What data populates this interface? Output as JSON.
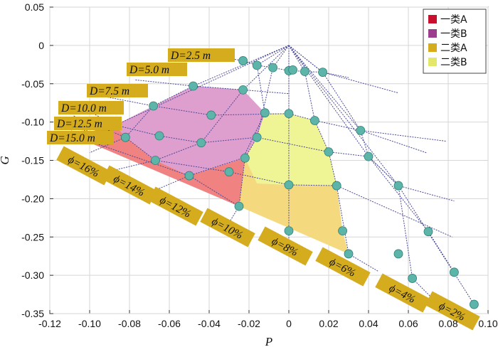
{
  "chart_data": {
    "type": "scatter",
    "title": "",
    "xlabel": "P",
    "ylabel": "G",
    "xlim": [
      -0.12,
      0.1
    ],
    "ylim": [
      -0.35,
      0.05
    ],
    "x_ticks": [
      "-0.12",
      "-0.10",
      "-0.08",
      "-0.06",
      "-0.04",
      "-0.02",
      "0",
      "0.02",
      "0.04",
      "0.06",
      "0.08",
      "0.10"
    ],
    "y_ticks": [
      "0.05",
      "0",
      "-0.05",
      "-0.10",
      "-0.15",
      "-0.20",
      "-0.25",
      "-0.30",
      "-0.35"
    ],
    "grid": true,
    "legend_position": "top-right",
    "legend": [
      {
        "label": "一类A",
        "color": "#c8102e"
      },
      {
        "label": "一类B",
        "color": "#9c3d8e"
      },
      {
        "label": "二类A",
        "color": "#d4ac1e"
      },
      {
        "label": "二类B",
        "color": "#e3e86a"
      }
    ],
    "regions": [
      {
        "class": "一类B",
        "color": "#de9fcf",
        "points": [
          [
            -0.048,
            -0.053
          ],
          [
            -0.023,
            -0.058
          ],
          [
            -0.012,
            -0.088
          ],
          [
            -0.016,
            -0.12
          ],
          [
            -0.022,
            -0.147
          ],
          [
            -0.05,
            -0.17
          ],
          [
            -0.067,
            -0.15
          ],
          [
            -0.082,
            -0.12
          ],
          [
            -0.087,
            -0.104
          ],
          [
            -0.068,
            -0.079
          ]
        ]
      },
      {
        "class": "一类A",
        "color": "#f08282",
        "points": [
          [
            -0.087,
            -0.104
          ],
          [
            -0.082,
            -0.12
          ],
          [
            -0.067,
            -0.15
          ],
          [
            -0.05,
            -0.17
          ],
          [
            -0.022,
            -0.147
          ],
          [
            -0.025,
            -0.21
          ],
          [
            -0.108,
            -0.118
          ]
        ]
      },
      {
        "class": "二类B",
        "color": "#eff494",
        "points": [
          [
            -0.012,
            -0.088
          ],
          [
            0.0,
            -0.089
          ],
          [
            0.013,
            -0.098
          ],
          [
            0.02,
            -0.139
          ],
          [
            0.024,
            -0.183
          ],
          [
            0.0,
            -0.182
          ],
          [
            -0.016,
            -0.18
          ],
          [
            -0.022,
            -0.147
          ],
          [
            -0.016,
            -0.12
          ]
        ]
      },
      {
        "class": "二类A",
        "color": "#f4d97e",
        "points": [
          [
            -0.022,
            -0.147
          ],
          [
            -0.016,
            -0.18
          ],
          [
            0.0,
            -0.182
          ],
          [
            0.024,
            -0.183
          ],
          [
            0.027,
            -0.242
          ],
          [
            0.03,
            -0.272
          ],
          [
            -0.025,
            -0.21
          ]
        ]
      }
    ],
    "origin": [
      0.0,
      0.0
    ],
    "d_lines": [
      {
        "label": "D=2.5 m",
        "points": [
          [
            -0.058,
            -0.005
          ],
          [
            -0.023,
            -0.02
          ],
          [
            -0.016,
            -0.026
          ],
          [
            -0.008,
            -0.029
          ],
          [
            -0.002,
            -0.032
          ],
          [
            0.002,
            -0.033
          ],
          [
            0.008,
            -0.034
          ],
          [
            0.017,
            -0.035
          ],
          [
            0.03,
            -0.042
          ]
        ]
      },
      {
        "label": "D=5.0 m",
        "points": [
          [
            -0.077,
            -0.045
          ],
          [
            -0.048,
            -0.053
          ],
          [
            -0.023,
            -0.058
          ],
          [
            0.0,
            -0.063
          ]
        ]
      },
      {
        "label": "D=7.5 m",
        "points": [
          [
            -0.096,
            -0.065
          ],
          [
            -0.068,
            -0.079
          ],
          [
            -0.039,
            -0.091
          ],
          [
            0.0,
            -0.089
          ],
          [
            0.013,
            -0.098
          ],
          [
            0.036,
            -0.111
          ],
          [
            0.079,
            -0.125
          ]
        ]
      },
      {
        "label": "D=10.0 m",
        "points": [
          [
            -0.105,
            -0.08
          ],
          [
            -0.087,
            -0.104
          ],
          [
            -0.065,
            -0.118
          ],
          [
            -0.044,
            -0.127
          ],
          [
            -0.016,
            -0.12
          ],
          [
            0.02,
            -0.139
          ],
          [
            0.04,
            -0.145
          ],
          [
            0.055,
            -0.183
          ],
          [
            0.083,
            -0.203
          ]
        ]
      },
      {
        "label": "D=12.5 m",
        "points": [
          [
            -0.108,
            -0.092
          ],
          [
            -0.082,
            -0.12
          ],
          [
            -0.067,
            -0.15
          ],
          [
            -0.03,
            -0.165
          ],
          [
            0.0,
            -0.182
          ],
          [
            0.024,
            -0.183
          ],
          [
            0.082,
            -0.25
          ]
        ]
      },
      {
        "label": "D=15.0 m",
        "points": [
          [
            -0.11,
            -0.105
          ],
          [
            -0.108,
            -0.118
          ],
          [
            -0.05,
            -0.17
          ],
          [
            -0.025,
            -0.21
          ]
        ]
      }
    ],
    "phi_lines": [
      {
        "label": "ϕ=16%",
        "points": [
          [
            0.0,
            0.0
          ],
          [
            -0.087,
            -0.104
          ],
          [
            -0.115,
            -0.117
          ]
        ]
      },
      {
        "label": "ϕ=14%",
        "points": [
          [
            0.0,
            0.0
          ],
          [
            -0.048,
            -0.053
          ],
          [
            -0.068,
            -0.079
          ],
          [
            -0.082,
            -0.12
          ],
          [
            -0.1,
            -0.14
          ]
        ]
      },
      {
        "label": "ϕ=12%",
        "points": [
          [
            0.0,
            0.0
          ],
          [
            -0.023,
            -0.058
          ],
          [
            -0.044,
            -0.127
          ],
          [
            -0.067,
            -0.15
          ],
          [
            -0.088,
            -0.163
          ]
        ]
      },
      {
        "label": "ϕ=10%",
        "points": [
          [
            0.0,
            0.0
          ],
          [
            -0.016,
            -0.026
          ],
          [
            -0.012,
            -0.088
          ],
          [
            -0.023,
            -0.147
          ],
          [
            -0.05,
            -0.17
          ],
          [
            -0.068,
            -0.19
          ]
        ]
      },
      {
        "label": "ϕ=8%",
        "points": [
          [
            0.0,
            0.0
          ],
          [
            -0.008,
            -0.029
          ],
          [
            -0.016,
            -0.12
          ],
          [
            -0.022,
            -0.147
          ],
          [
            -0.025,
            -0.21
          ],
          [
            -0.032,
            -0.24
          ]
        ]
      },
      {
        "label": "ϕ=6%",
        "points": [
          [
            0.0,
            0.0
          ],
          [
            0.0,
            -0.033
          ],
          [
            0.0,
            -0.089
          ],
          [
            0.0,
            -0.182
          ],
          [
            0.0,
            -0.242
          ],
          [
            0.0,
            -0.262
          ]
        ]
      },
      {
        "label": "ϕ=4%",
        "points": [
          [
            0.0,
            0.0
          ],
          [
            0.008,
            -0.034
          ],
          [
            0.013,
            -0.098
          ],
          [
            0.02,
            -0.139
          ],
          [
            0.024,
            -0.183
          ],
          [
            0.03,
            -0.272
          ],
          [
            0.045,
            -0.295
          ]
        ]
      },
      {
        "label": "ϕ=2%",
        "points": [
          [
            0.0,
            0.0
          ],
          [
            0.017,
            -0.035
          ],
          [
            0.036,
            -0.111
          ],
          [
            0.04,
            -0.145
          ],
          [
            0.055,
            -0.183
          ],
          [
            0.062,
            -0.304
          ],
          [
            0.072,
            -0.33
          ]
        ]
      }
    ],
    "extra_lines": [
      [
        [
          0.0,
          0.0
        ],
        [
          0.055,
          -0.183
        ],
        [
          0.093,
          -0.338
        ]
      ],
      [
        [
          0.0,
          0.0
        ],
        [
          0.04,
          -0.145
        ],
        [
          0.07,
          -0.243
        ],
        [
          0.083,
          -0.296
        ]
      ],
      [
        [
          0.0,
          0.0
        ],
        [
          0.036,
          -0.111
        ],
        [
          0.069,
          -0.14
        ]
      ],
      [
        [
          0.0,
          0.0
        ],
        [
          0.017,
          -0.035
        ],
        [
          0.055,
          -0.062
        ]
      ]
    ],
    "points": [
      [
        -0.023,
        -0.02
      ],
      [
        -0.016,
        -0.026
      ],
      [
        -0.008,
        -0.029
      ],
      [
        0.0,
        -0.033
      ],
      [
        0.008,
        -0.034
      ],
      [
        0.017,
        -0.035
      ],
      [
        0.002,
        -0.032
      ],
      [
        -0.048,
        -0.053
      ],
      [
        -0.023,
        -0.058
      ],
      [
        -0.068,
        -0.079
      ],
      [
        -0.039,
        -0.091
      ],
      [
        -0.012,
        -0.088
      ],
      [
        0.0,
        -0.089
      ],
      [
        0.013,
        -0.098
      ],
      [
        0.036,
        -0.111
      ],
      [
        -0.087,
        -0.104
      ],
      [
        -0.065,
        -0.118
      ],
      [
        -0.044,
        -0.127
      ],
      [
        -0.016,
        -0.12
      ],
      [
        0.02,
        -0.139
      ],
      [
        0.04,
        -0.145
      ],
      [
        -0.082,
        -0.12
      ],
      [
        -0.067,
        -0.15
      ],
      [
        -0.05,
        -0.17
      ],
      [
        -0.03,
        -0.165
      ],
      [
        -0.022,
        -0.147
      ],
      [
        0.0,
        -0.182
      ],
      [
        0.024,
        -0.183
      ],
      [
        0.055,
        -0.183
      ],
      [
        -0.108,
        -0.118
      ],
      [
        -0.025,
        -0.21
      ],
      [
        0.027,
        -0.242
      ],
      [
        0.0,
        -0.242
      ],
      [
        0.07,
        -0.243
      ],
      [
        0.03,
        -0.272
      ],
      [
        0.055,
        -0.272
      ],
      [
        0.062,
        -0.304
      ],
      [
        0.083,
        -0.296
      ],
      [
        0.093,
        -0.338
      ],
      [
        0.0,
        -0.262
      ]
    ],
    "d_tags": [
      "D=2.5 m",
      "D=5.0 m",
      "D=7.5 m",
      "D=10.0 m",
      "D=12.5 m",
      "D=15.0 m"
    ],
    "phi_tags": [
      "ϕ=16%",
      "ϕ=14%",
      "ϕ=12%",
      "ϕ=10%",
      "ϕ=8%",
      "ϕ=6%",
      "ϕ=4%",
      "ϕ=2%"
    ]
  }
}
